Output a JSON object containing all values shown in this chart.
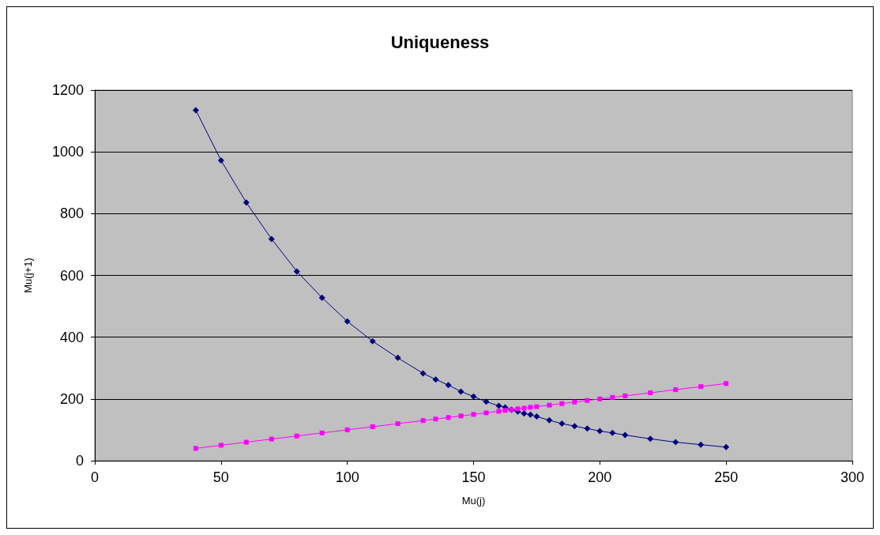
{
  "chart_data": {
    "type": "line",
    "title": "Uniqueness",
    "xlabel": "Mu(j)",
    "ylabel": "Mu(j+1)",
    "xlim": [
      0,
      300
    ],
    "xticks": [
      0,
      50,
      100,
      150,
      200,
      250,
      300
    ],
    "ylim": [
      0,
      1200
    ],
    "yticks": [
      0,
      200,
      400,
      600,
      800,
      1000,
      1200
    ],
    "grid": "y",
    "x": [
      40,
      50,
      60,
      70,
      80,
      90,
      100,
      110,
      120,
      130,
      135,
      140,
      145,
      150,
      155,
      160,
      162.5,
      165,
      167.5,
      170,
      172.5,
      175,
      180,
      185,
      190,
      195,
      200,
      205,
      210,
      220,
      230,
      240,
      250
    ],
    "series": [
      {
        "color": "#000080",
        "marker": "diamond",
        "values": [
          1135,
          972,
          836,
          718,
          613,
          528,
          451,
          387,
          333,
          283,
          263,
          245,
          224,
          208,
          191,
          178,
          173,
          165,
          159,
          153,
          149,
          143,
          131,
          120,
          112,
          104,
          96,
          90,
          83,
          71,
          60,
          52,
          44
        ]
      },
      {
        "color": "#ff00ff",
        "marker": "square",
        "values": [
          40,
          50,
          60,
          70,
          80,
          90,
          100,
          110,
          120,
          130,
          135,
          140,
          145,
          150,
          155,
          160,
          163,
          165,
          168,
          170,
          173,
          175,
          180,
          185,
          190,
          195,
          200,
          205,
          210,
          220,
          230,
          240,
          250
        ]
      }
    ]
  }
}
